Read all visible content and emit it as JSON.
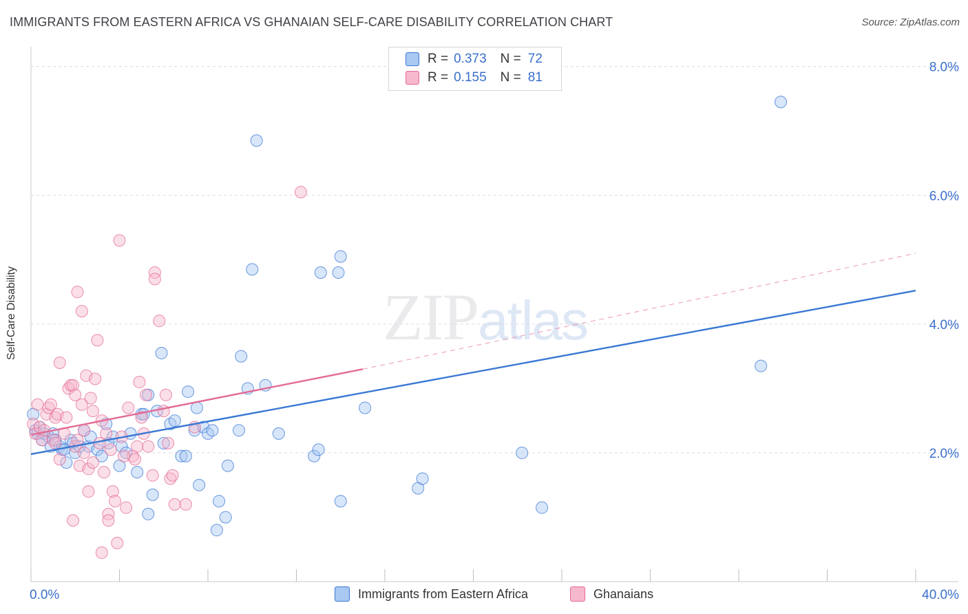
{
  "title": "IMMIGRANTS FROM EASTERN AFRICA VS GHANAIAN SELF-CARE DISABILITY CORRELATION CHART",
  "source": "Source: ZipAtlas.com",
  "watermark": {
    "zip": "ZIP",
    "atlas": "atlas"
  },
  "colors": {
    "blue": "#3a78d4",
    "blue_fill": "#a9c8f2",
    "pink": "#e36a94",
    "pink_fill": "#f6b8cc",
    "tick_label": "#3a6fcc"
  },
  "legend": [
    {
      "r_label": "R =",
      "r_value": "0.373",
      "n_label": "N =",
      "n_value": "72"
    },
    {
      "r_label": "R =",
      "r_value": "0.155",
      "n_label": "N =",
      "n_value": "81"
    }
  ],
  "bottom_legend": [
    "Immigrants from Eastern Africa",
    "Ghanaians"
  ],
  "chart_data": {
    "type": "scatter",
    "title": "IMMIGRANTS FROM EASTERN AFRICA VS GHANAIAN SELF-CARE DISABILITY CORRELATION CHART",
    "xlabel": "",
    "ylabel": "Self-Care Disability",
    "xlim": [
      0,
      40
    ],
    "ylim": [
      0,
      8.2
    ],
    "x_tick_labels": [
      "0.0%",
      "40.0%"
    ],
    "y_ticks": [
      2,
      4,
      6,
      8
    ],
    "y_tick_labels": [
      "2.0%",
      "4.0%",
      "6.0%",
      "8.0%"
    ],
    "series": [
      {
        "name": "Immigrants from Eastern Africa",
        "trend": {
          "x": [
            0,
            40
          ],
          "y": [
            1.98,
            4.52
          ],
          "style": "solid"
        },
        "points": [
          [
            0.1,
            2.6
          ],
          [
            0.2,
            2.35
          ],
          [
            0.3,
            2.3
          ],
          [
            0.4,
            2.4
          ],
          [
            0.5,
            2.2
          ],
          [
            0.6,
            2.3
          ],
          [
            0.8,
            2.25
          ],
          [
            0.9,
            2.1
          ],
          [
            1.0,
            2.3
          ],
          [
            1.1,
            2.2
          ],
          [
            1.3,
            2.1
          ],
          [
            1.4,
            2.05
          ],
          [
            1.5,
            2.05
          ],
          [
            1.6,
            1.85
          ],
          [
            1.8,
            2.2
          ],
          [
            1.9,
            2.15
          ],
          [
            2.0,
            2.0
          ],
          [
            2.2,
            2.1
          ],
          [
            2.4,
            2.35
          ],
          [
            2.6,
            2.1
          ],
          [
            2.7,
            2.25
          ],
          [
            3.0,
            2.05
          ],
          [
            3.2,
            1.95
          ],
          [
            3.4,
            2.45
          ],
          [
            3.5,
            2.15
          ],
          [
            3.7,
            2.25
          ],
          [
            4.0,
            1.8
          ],
          [
            4.1,
            2.1
          ],
          [
            4.3,
            2.0
          ],
          [
            4.5,
            2.3
          ],
          [
            4.8,
            1.7
          ],
          [
            5.0,
            2.6
          ],
          [
            5.1,
            2.6
          ],
          [
            5.3,
            1.05
          ],
          [
            5.3,
            2.9
          ],
          [
            5.5,
            1.35
          ],
          [
            5.7,
            2.65
          ],
          [
            5.9,
            3.55
          ],
          [
            6.0,
            2.15
          ],
          [
            6.3,
            2.45
          ],
          [
            6.5,
            2.5
          ],
          [
            6.8,
            1.95
          ],
          [
            7.0,
            1.95
          ],
          [
            7.1,
            2.95
          ],
          [
            7.4,
            2.35
          ],
          [
            7.5,
            2.7
          ],
          [
            7.6,
            1.5
          ],
          [
            7.8,
            2.4
          ],
          [
            8.0,
            2.3
          ],
          [
            8.2,
            2.35
          ],
          [
            8.4,
            0.8
          ],
          [
            8.5,
            1.25
          ],
          [
            8.8,
            1.0
          ],
          [
            8.9,
            1.8
          ],
          [
            9.4,
            2.35
          ],
          [
            9.5,
            3.5
          ],
          [
            9.8,
            3.0
          ],
          [
            10.0,
            4.85
          ],
          [
            10.2,
            6.85
          ],
          [
            10.6,
            3.05
          ],
          [
            11.2,
            2.3
          ],
          [
            12.8,
            1.95
          ],
          [
            13.0,
            2.05
          ],
          [
            13.1,
            4.8
          ],
          [
            13.9,
            4.8
          ],
          [
            14.0,
            1.25
          ],
          [
            14.0,
            5.05
          ],
          [
            15.1,
            2.7
          ],
          [
            17.5,
            1.45
          ],
          [
            17.7,
            1.6
          ],
          [
            22.2,
            2.0
          ],
          [
            23.1,
            1.15
          ],
          [
            33.0,
            3.35
          ],
          [
            33.9,
            7.45
          ]
        ]
      },
      {
        "name": "Ghanaians",
        "trend": {
          "x": [
            0,
            15
          ],
          "y": [
            2.28,
            3.3
          ],
          "style": "solid",
          "extension": {
            "x": [
              15,
              40
            ],
            "y": [
              3.3,
              5.1
            ],
            "style": "dashed"
          }
        },
        "points": [
          [
            0.1,
            2.45
          ],
          [
            0.2,
            2.3
          ],
          [
            0.3,
            2.75
          ],
          [
            0.4,
            2.4
          ],
          [
            0.5,
            2.2
          ],
          [
            0.6,
            2.35
          ],
          [
            0.7,
            2.6
          ],
          [
            0.8,
            2.7
          ],
          [
            0.9,
            2.75
          ],
          [
            1.0,
            2.2
          ],
          [
            1.1,
            2.15
          ],
          [
            1.1,
            2.55
          ],
          [
            1.2,
            2.6
          ],
          [
            1.3,
            1.9
          ],
          [
            1.3,
            3.4
          ],
          [
            1.5,
            2.3
          ],
          [
            1.6,
            2.55
          ],
          [
            1.7,
            3.0
          ],
          [
            1.8,
            3.05
          ],
          [
            1.9,
            3.05
          ],
          [
            2.0,
            2.9
          ],
          [
            2.0,
            2.1
          ],
          [
            2.1,
            2.2
          ],
          [
            2.1,
            4.5
          ],
          [
            2.2,
            1.8
          ],
          [
            2.3,
            2.75
          ],
          [
            2.3,
            4.2
          ],
          [
            2.4,
            2.0
          ],
          [
            2.5,
            3.2
          ],
          [
            2.6,
            1.75
          ],
          [
            2.6,
            1.4
          ],
          [
            2.7,
            2.85
          ],
          [
            2.8,
            2.65
          ],
          [
            2.9,
            3.15
          ],
          [
            3.0,
            3.75
          ],
          [
            3.1,
            2.15
          ],
          [
            3.2,
            2.5
          ],
          [
            3.3,
            1.7
          ],
          [
            3.4,
            2.3
          ],
          [
            3.5,
            1.05
          ],
          [
            3.5,
            0.95
          ],
          [
            3.6,
            2.05
          ],
          [
            3.7,
            1.4
          ],
          [
            3.8,
            1.25
          ],
          [
            3.9,
            0.6
          ],
          [
            4.0,
            5.3
          ],
          [
            4.1,
            2.25
          ],
          [
            4.3,
            1.15
          ],
          [
            4.4,
            2.7
          ],
          [
            4.6,
            1.95
          ],
          [
            4.7,
            1.9
          ],
          [
            4.8,
            2.1
          ],
          [
            4.9,
            3.1
          ],
          [
            5.0,
            2.55
          ],
          [
            5.1,
            2.3
          ],
          [
            5.2,
            2.9
          ],
          [
            5.3,
            2.1
          ],
          [
            5.5,
            1.65
          ],
          [
            5.6,
            4.8
          ],
          [
            5.6,
            4.7
          ],
          [
            5.8,
            4.05
          ],
          [
            6.0,
            2.65
          ],
          [
            6.1,
            2.9
          ],
          [
            6.2,
            2.15
          ],
          [
            6.3,
            1.6
          ],
          [
            6.4,
            1.65
          ],
          [
            6.5,
            1.2
          ],
          [
            7.0,
            1.2
          ],
          [
            7.4,
            2.4
          ],
          [
            3.2,
            0.45
          ],
          [
            1.9,
            0.95
          ],
          [
            2.4,
            2.35
          ],
          [
            2.8,
            1.85
          ],
          [
            4.2,
            1.95
          ],
          [
            12.2,
            6.05
          ]
        ]
      }
    ]
  }
}
